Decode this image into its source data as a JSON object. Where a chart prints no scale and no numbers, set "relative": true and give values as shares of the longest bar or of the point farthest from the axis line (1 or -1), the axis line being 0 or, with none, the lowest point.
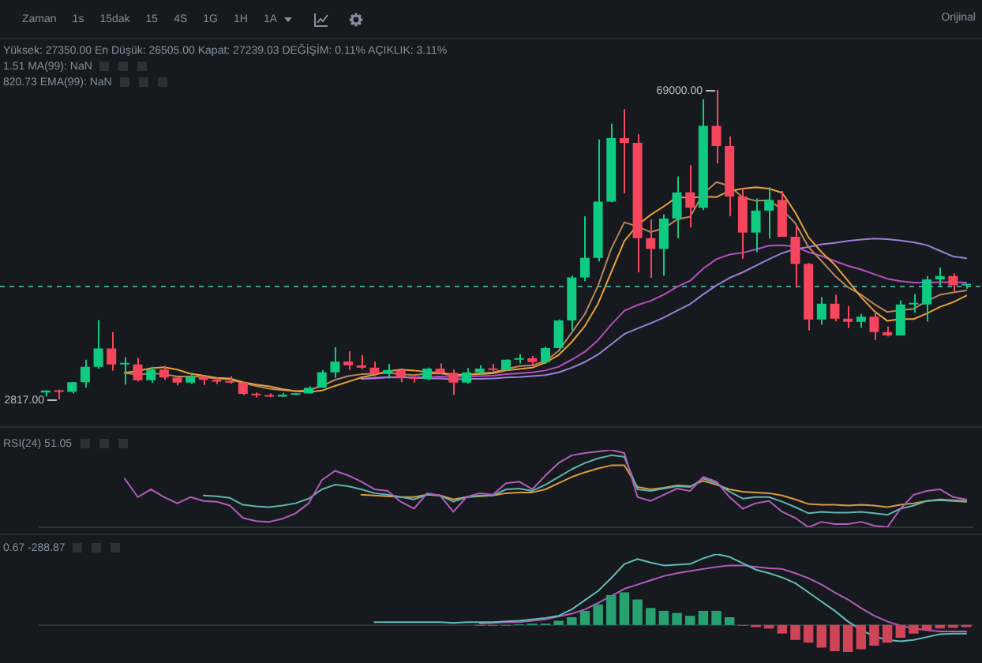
{
  "chart_data": [
    {
      "type": "other",
      "annotations": [
        "Zaman",
        "1s",
        "15dak",
        "15",
        "4S",
        "1G",
        "1H",
        "1A",
        "Orijinal"
      ]
    },
    {
      "type": "candlestick",
      "categories": [
        null,
        null,
        null,
        null,
        null,
        null,
        null,
        null,
        null,
        null,
        null,
        null,
        null,
        null,
        null,
        null,
        null,
        null,
        null,
        null,
        null,
        null,
        null,
        null,
        null,
        null,
        null,
        null,
        null,
        null,
        null,
        null,
        null,
        null,
        null,
        null,
        null,
        null,
        null,
        null,
        null,
        null,
        null,
        null,
        null,
        null,
        null,
        null,
        null,
        null,
        null,
        null,
        null,
        null,
        null,
        null,
        null,
        null,
        null,
        null,
        null,
        null,
        null,
        null,
        null,
        null,
        null,
        null,
        null,
        null,
        null
      ],
      "ohlc": [
        [
          4300,
          4700,
          3400,
          4700
        ],
        [
          4700,
          4900,
          2817,
          4400
        ],
        [
          4400,
          6500,
          4100,
          6500
        ],
        [
          6500,
          11300,
          5300,
          9800
        ],
        [
          9800,
          19800,
          9400,
          13700
        ],
        [
          13700,
          17200,
          9000,
          10300
        ],
        [
          10300,
          11800,
          6000,
          10300
        ],
        [
          10300,
          11700,
          6600,
          6900
        ],
        [
          6900,
          9800,
          6400,
          9200
        ],
        [
          9200,
          10000,
          7000,
          7500
        ],
        [
          7500,
          7800,
          5800,
          6400
        ],
        [
          6400,
          8500,
          6100,
          7700
        ],
        [
          7700,
          7800,
          5900,
          7000
        ],
        [
          7000,
          7400,
          6100,
          6600
        ],
        [
          6600,
          7700,
          6200,
          6400
        ],
        [
          6400,
          6600,
          3700,
          4000
        ],
        [
          4000,
          4300,
          3200,
          3700
        ],
        [
          3700,
          4100,
          3300,
          3400
        ],
        [
          3400,
          4200,
          3400,
          3800
        ],
        [
          3800,
          4100,
          3700,
          4100
        ],
        [
          4100,
          5600,
          4100,
          5300
        ],
        [
          5300,
          9100,
          5300,
          8600
        ],
        [
          8600,
          14000,
          7400,
          10900
        ],
        [
          10900,
          13100,
          9100,
          10100
        ],
        [
          10100,
          12300,
          9300,
          9600
        ],
        [
          9600,
          10900,
          7700,
          8300
        ],
        [
          8300,
          10400,
          7300,
          9100
        ],
        [
          9100,
          9500,
          6500,
          7500
        ],
        [
          7500,
          7800,
          6400,
          7200
        ],
        [
          7200,
          9600,
          6900,
          9400
        ],
        [
          9400,
          10500,
          8400,
          8500
        ],
        [
          8500,
          9200,
          3800,
          6400
        ],
        [
          6400,
          9500,
          6200,
          8600
        ],
        [
          8600,
          10100,
          8100,
          9400
        ],
        [
          9400,
          10400,
          8800,
          9100
        ],
        [
          9100,
          11400,
          9000,
          11300
        ],
        [
          11300,
          12500,
          10500,
          11600
        ],
        [
          11600,
          12100,
          9800,
          10800
        ],
        [
          10800,
          14100,
          10400,
          13800
        ],
        [
          13800,
          19900,
          13200,
          19700
        ],
        [
          19700,
          29300,
          17600,
          28900
        ],
        [
          28900,
          42000,
          28100,
          33100
        ],
        [
          33100,
          58400,
          32300,
          45100
        ],
        [
          45100,
          61800,
          45000,
          58700
        ],
        [
          58700,
          64900,
          46900,
          57700
        ],
        [
          57700,
          59500,
          30000,
          37300
        ],
        [
          37300,
          41300,
          28800,
          35000
        ],
        [
          35000,
          42400,
          29300,
          41500
        ],
        [
          41500,
          50500,
          37300,
          47100
        ],
        [
          47100,
          52900,
          39600,
          43800
        ],
        [
          43800,
          67000,
          43300,
          61300
        ],
        [
          61300,
          69000,
          53300,
          57000
        ],
        [
          57000,
          59100,
          42000,
          46200
        ],
        [
          46200,
          48000,
          32900,
          38500
        ],
        [
          38500,
          45800,
          34300,
          43200
        ],
        [
          43200,
          48200,
          37200,
          45500
        ],
        [
          45500,
          47400,
          37600,
          37600
        ],
        [
          37600,
          40000,
          26700,
          31800
        ],
        [
          31800,
          32000,
          17600,
          19900
        ],
        [
          19900,
          24700,
          18800,
          23300
        ],
        [
          23300,
          25200,
          19500,
          20100
        ],
        [
          20100,
          22800,
          18100,
          19400
        ],
        [
          19400,
          21100,
          18200,
          20500
        ],
        [
          20500,
          21500,
          15500,
          17200
        ],
        [
          17200,
          18400,
          16300,
          16500
        ],
        [
          16500,
          24000,
          16500,
          23100
        ],
        [
          23100,
          25300,
          21400,
          23100
        ],
        [
          23100,
          29200,
          19500,
          28500
        ],
        [
          28500,
          31000,
          26900,
          29200
        ],
        [
          29200,
          29800,
          25800,
          27200
        ],
        [
          27200,
          27350,
          26505,
          27239.03
        ]
      ],
      "colors": [
        "#0ecb81",
        "#f6465d",
        "#0ecb81",
        "#0ecb81",
        "#0ecb81",
        "#f6465d",
        "#0ecb81",
        "#f6465d",
        "#0ecb81",
        "#f6465d",
        "#f6465d",
        "#0ecb81",
        "#f6465d",
        "#f6465d",
        "#f6465d",
        "#f6465d",
        "#f6465d",
        "#f6465d",
        "#0ecb81",
        "#0ecb81",
        "#0ecb81",
        "#0ecb81",
        "#0ecb81",
        "#f6465d",
        "#f6465d",
        "#f6465d",
        "#0ecb81",
        "#f6465d",
        "#f6465d",
        "#0ecb81",
        "#f6465d",
        "#f6465d",
        "#0ecb81",
        "#0ecb81",
        "#f6465d",
        "#0ecb81",
        "#0ecb81",
        "#f6465d",
        "#0ecb81",
        "#0ecb81",
        "#0ecb81",
        "#0ecb81",
        "#0ecb81",
        "#0ecb81",
        "#f6465d",
        "#f6465d",
        "#f6465d",
        "#0ecb81",
        "#0ecb81",
        "#f6465d",
        "#0ecb81",
        "#f6465d",
        "#f6465d",
        "#f6465d",
        "#0ecb81",
        "#0ecb81",
        "#f6465d",
        "#f6465d",
        "#f6465d",
        "#0ecb81",
        "#f6465d",
        "#f6465d",
        "#0ecb81",
        "#f6465d",
        "#f6465d",
        "#0ecb81",
        "#0ecb81",
        "#0ecb81",
        "#0ecb81",
        "#f6465d",
        "#0ecb81"
      ],
      "series": [
        {
          "type": "line",
          "color": "#e8a03c",
          "values": [
            null,
            null,
            null,
            null,
            null,
            null,
            8500,
            8900,
            9500,
            9700,
            9200,
            8300,
            7900,
            7400,
            7300,
            6500,
            6000,
            5600,
            5000,
            4600,
            4400,
            4700,
            5700,
            6600,
            7500,
            8100,
            8800,
            9200,
            9000,
            8700,
            8500,
            8100,
            8100,
            8200,
            8400,
            9000,
            9300,
            9600,
            10700,
            12300,
            15100,
            18500,
            23300,
            30000,
            36700,
            40100,
            42300,
            44100,
            46100,
            45900,
            46200,
            46100,
            47400,
            47900,
            48200,
            47900,
            47000,
            42800,
            37500,
            34300,
            31600,
            28200,
            24700,
            21700,
            19600,
            20000,
            20000,
            21200,
            22600,
            23600,
            25000
          ]
        },
        {
          "type": "line",
          "color": "#b8865c",
          "values": [
            null,
            null,
            null,
            null,
            null,
            null,
            8500,
            8100,
            8400,
            8200,
            7700,
            7700,
            7600,
            7300,
            7100,
            6300,
            5700,
            5100,
            4800,
            4600,
            4800,
            5700,
            7000,
            7800,
            8200,
            8300,
            8500,
            8200,
            8000,
            8300,
            8400,
            7900,
            8100,
            8400,
            8600,
            9300,
            9900,
            10100,
            11000,
            13200,
            17100,
            21100,
            27100,
            35000,
            40700,
            39800,
            38600,
            39400,
            41300,
            41900,
            46800,
            49300,
            48500,
            46000,
            45300,
            45400,
            43400,
            40500,
            35400,
            32400,
            29300,
            26800,
            25200,
            23200,
            21500,
            21900,
            22200,
            23800,
            25200,
            25700,
            26100
          ]
        },
        {
          "type": "line",
          "color": "#9d7fd8",
          "values": [
            null,
            null,
            null,
            null,
            null,
            null,
            null,
            null,
            null,
            null,
            null,
            null,
            null,
            null,
            null,
            null,
            null,
            null,
            null,
            null,
            null,
            null,
            null,
            null,
            7200,
            7400,
            7600,
            7600,
            7500,
            7300,
            7300,
            7100,
            7200,
            7200,
            7300,
            7500,
            7600,
            7800,
            8000,
            8600,
            9600,
            10800,
            12400,
            14600,
            16800,
            18000,
            19100,
            20300,
            21800,
            23200,
            25300,
            27200,
            28800,
            30000,
            31400,
            32800,
            34100,
            35000,
            35400,
            36000,
            36300,
            36700,
            37000,
            37200,
            37100,
            36800,
            36400,
            35800,
            34600,
            33400,
            33000
          ]
        },
        {
          "type": "line",
          "color": "#b450c0",
          "values": [
            null,
            null,
            null,
            null,
            null,
            null,
            null,
            null,
            null,
            null,
            null,
            null,
            null,
            null,
            null,
            null,
            null,
            null,
            null,
            null,
            null,
            null,
            null,
            null,
            7200,
            7300,
            7500,
            7500,
            7500,
            7600,
            7700,
            7600,
            7700,
            7800,
            7900,
            8200,
            8400,
            8600,
            9000,
            9800,
            11300,
            13000,
            15500,
            18800,
            21800,
            23000,
            23900,
            25200,
            26900,
            28200,
            30800,
            32800,
            33800,
            34200,
            34900,
            35700,
            35800,
            35500,
            34300,
            33500,
            32400,
            31400,
            30600,
            29600,
            28600,
            28100,
            27800,
            27800,
            27900,
            27900,
            27800
          ]
        }
      ],
      "ref_lines": [
        {
          "axis": "y",
          "value": 27239.03,
          "color": "#3e9e8e",
          "line_style": "dashed"
        }
      ],
      "annotations": [
        "Yüksek: 27350.00 En Düşük: 26505.00 Kapat: 27239.03 DEĞİŞİM: 0.11% AÇIKLIK: 3.11%",
        "1.51 MA(99): NaN",
        "820.73 EMA(99): NaN",
        "69000.00",
        "2817.00"
      ]
    },
    {
      "type": "line",
      "relative": true,
      "categories": [
        null,
        null,
        null,
        null,
        null,
        null,
        null,
        null,
        null,
        null,
        null,
        null,
        null,
        null,
        null,
        null,
        null,
        null,
        null,
        null,
        null,
        null,
        null,
        null,
        null,
        null,
        null,
        null,
        null,
        null,
        null,
        null,
        null,
        null,
        null,
        null,
        null,
        null,
        null,
        null,
        null,
        null,
        null,
        null,
        null,
        null,
        null,
        null,
        null,
        null,
        null,
        null,
        null,
        null,
        null,
        null,
        null,
        null,
        null,
        null,
        null,
        null,
        null,
        null,
        null,
        null,
        null,
        null,
        null,
        null,
        null
      ],
      "series": [
        {
          "color": "#b45cbb",
          "values": [
            null,
            null,
            null,
            null,
            null,
            null,
            0.63,
            0.39,
            0.49,
            0.39,
            0.31,
            0.39,
            0.34,
            0.33,
            0.28,
            0.12,
            0.08,
            0.07,
            0.11,
            0.18,
            0.31,
            0.61,
            0.73,
            0.67,
            0.59,
            0.49,
            0.47,
            0.33,
            0.24,
            0.44,
            0.41,
            0.2,
            0.39,
            0.44,
            0.42,
            0.57,
            0.59,
            0.49,
            0.67,
            0.83,
            0.93,
            0.96,
            0.98,
            1,
            0.96,
            0.39,
            0.34,
            0.42,
            0.5,
            0.47,
            0.65,
            0.59,
            0.39,
            0.24,
            0.31,
            0.34,
            0.2,
            0.12,
            0,
            0.07,
            0.04,
            0.04,
            0.07,
            0.02,
            0,
            0.24,
            0.42,
            0.47,
            0.49,
            0.39,
            0.36
          ]
        },
        {
          "color": "#5fb3b1",
          "values": [
            null,
            null,
            null,
            null,
            null,
            null,
            null,
            null,
            null,
            null,
            null,
            null,
            0.41,
            0.4,
            0.38,
            0.29,
            0.27,
            0.26,
            0.28,
            0.31,
            0.37,
            0.49,
            0.55,
            0.53,
            0.49,
            0.44,
            0.42,
            0.39,
            0.36,
            0.42,
            0.41,
            0.33,
            0.39,
            0.41,
            0.41,
            0.49,
            0.5,
            0.47,
            0.55,
            0.65,
            0.75,
            0.83,
            0.89,
            0.93,
            0.91,
            0.49,
            0.47,
            0.5,
            0.53,
            0.52,
            0.63,
            0.57,
            0.46,
            0.37,
            0.39,
            0.39,
            0.33,
            0.26,
            0.18,
            0.2,
            0.19,
            0.19,
            0.2,
            0.18,
            0.16,
            0.24,
            0.28,
            0.34,
            0.35,
            0.34,
            0.33
          ]
        },
        {
          "color": "#d89a42",
          "values": [
            null,
            null,
            null,
            null,
            null,
            null,
            null,
            null,
            null,
            null,
            null,
            null,
            null,
            null,
            null,
            null,
            null,
            null,
            null,
            null,
            null,
            null,
            null,
            null,
            0.42,
            0.41,
            0.4,
            0.39,
            0.39,
            0.42,
            0.41,
            0.36,
            0.39,
            0.4,
            0.41,
            0.44,
            0.45,
            0.45,
            0.49,
            0.57,
            0.65,
            0.71,
            0.76,
            0.8,
            0.8,
            0.52,
            0.49,
            0.51,
            0.54,
            0.53,
            0.6,
            0.55,
            0.49,
            0.46,
            0.45,
            0.44,
            0.41,
            0.36,
            0.3,
            0.29,
            0.29,
            0.28,
            0.29,
            0.28,
            0.26,
            0.29,
            0.31,
            0.34,
            0.36,
            0.35,
            0.34
          ]
        }
      ],
      "annotations": [
        "RSI(24) 51.05"
      ]
    },
    {
      "type": "line",
      "relative": true,
      "categories": [
        null,
        null,
        null,
        null,
        null,
        null,
        null,
        null,
        null,
        null,
        null,
        null,
        null,
        null,
        null,
        null,
        null,
        null,
        null,
        null,
        null,
        null,
        null,
        null,
        null,
        null,
        null,
        null,
        null,
        null,
        null,
        null,
        null,
        null,
        null,
        null,
        null,
        null,
        null,
        null,
        null,
        null,
        null,
        null,
        null,
        null,
        null,
        null,
        null,
        null,
        null,
        null,
        null,
        null,
        null,
        null,
        null,
        null,
        null,
        null,
        null,
        null,
        null,
        null,
        null,
        null,
        null,
        null,
        null,
        null,
        null
      ],
      "series": [
        {
          "color": "#62bcb9",
          "values": [
            null,
            null,
            null,
            null,
            null,
            null,
            null,
            null,
            null,
            null,
            null,
            null,
            null,
            null,
            null,
            null,
            null,
            null,
            null,
            null,
            null,
            null,
            null,
            null,
            null,
            0.04,
            0.04,
            0.04,
            0.04,
            0.04,
            0.04,
            0.03,
            0.04,
            0.04,
            0.04,
            0.05,
            0.06,
            0.08,
            0.1,
            0.13,
            0.22,
            0.35,
            0.48,
            0.66,
            0.86,
            0.93,
            0.88,
            0.84,
            0.85,
            0.86,
            0.94,
            1,
            0.96,
            0.87,
            0.78,
            0.73,
            0.67,
            0.59,
            0.46,
            0.33,
            0.2,
            0.05,
            -0.07,
            -0.16,
            -0.21,
            -0.23,
            -0.21,
            -0.17,
            -0.13,
            -0.12,
            -0.12
          ]
        },
        {
          "color": "#b45cbb",
          "values": [
            null,
            null,
            null,
            null,
            null,
            null,
            null,
            null,
            null,
            null,
            null,
            null,
            null,
            null,
            null,
            null,
            null,
            null,
            null,
            null,
            null,
            null,
            null,
            null,
            null,
            null,
            null,
            null,
            null,
            null,
            null,
            null,
            null,
            0.02,
            0.03,
            0.04,
            0.04,
            0.06,
            0.08,
            0.12,
            0.16,
            0.22,
            0.31,
            0.41,
            0.51,
            0.57,
            0.63,
            0.69,
            0.73,
            0.76,
            0.79,
            0.82,
            0.84,
            0.84,
            0.82,
            0.8,
            0.79,
            0.73,
            0.66,
            0.57,
            0.46,
            0.36,
            0.24,
            0.13,
            0.05,
            -0.01,
            -0.05,
            -0.07,
            -0.09,
            -0.09,
            -0.09
          ]
        },
        {
          "type": "bar",
          "values": [
            null,
            null,
            null,
            null,
            null,
            null,
            null,
            null,
            null,
            null,
            null,
            null,
            null,
            null,
            null,
            null,
            null,
            null,
            null,
            null,
            null,
            null,
            null,
            null,
            null,
            null,
            null,
            null,
            null,
            null,
            null,
            null,
            null,
            -0.01,
            -0.01,
            -0.01,
            0.01,
            0.02,
            0.02,
            0.06,
            0.11,
            0.2,
            0.29,
            0.42,
            0.46,
            0.36,
            0.24,
            0.2,
            0.17,
            0.13,
            0.2,
            0.2,
            0.11,
            -0.01,
            -0.03,
            -0.05,
            -0.12,
            -0.21,
            -0.25,
            -0.32,
            -0.37,
            -0.38,
            -0.34,
            -0.29,
            -0.25,
            -0.18,
            -0.12,
            -0.07,
            -0.05,
            -0.04,
            -0.03
          ],
          "colors": [
            null,
            null,
            null,
            null,
            null,
            null,
            null,
            null,
            null,
            null,
            null,
            null,
            null,
            null,
            null,
            null,
            null,
            null,
            null,
            null,
            null,
            null,
            null,
            null,
            null,
            null,
            null,
            null,
            null,
            null,
            null,
            null,
            null,
            "#cf4557",
            "#cf4557",
            "#cf4557",
            "#27a170",
            "#27a170",
            "#27a170",
            "#27a170",
            "#27a170",
            "#27a170",
            "#27a170",
            "#27a170",
            "#27a170",
            "#27a170",
            "#27a170",
            "#27a170",
            "#27a170",
            "#27a170",
            "#27a170",
            "#27a170",
            "#27a170",
            "#cf4557",
            "#cf4557",
            "#cf4557",
            "#cf4557",
            "#cf4557",
            "#cf4557",
            "#cf4557",
            "#cf4557",
            "#cf4557",
            "#cf4557",
            "#cf4557",
            "#cf4557",
            "#cf4557",
            "#cf4557",
            "#cf4557",
            "#cf4557",
            "#cf4557",
            "#cf4557"
          ]
        }
      ],
      "annotations": [
        "0.67 -288.87"
      ]
    }
  ]
}
